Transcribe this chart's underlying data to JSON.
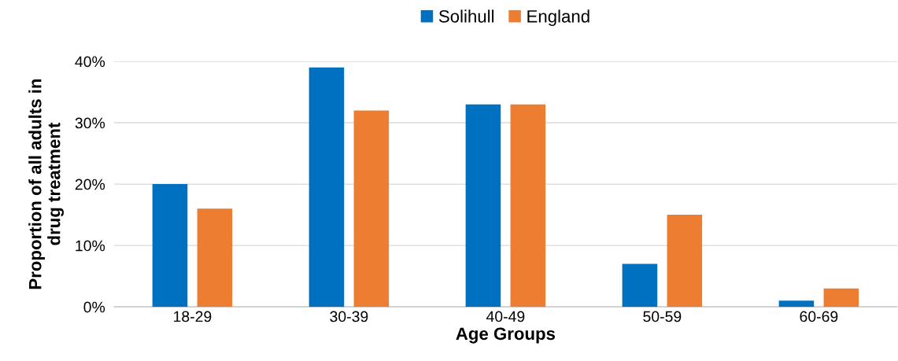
{
  "chart_data": {
    "type": "bar",
    "xlabel": "Age Groups",
    "ylabel": "Proportion of all adults in\ndrug treatment",
    "categories": [
      "18-29",
      "30-39",
      "40-49",
      "50-59",
      "60-69"
    ],
    "series": [
      {
        "name": "Solihull",
        "color": "#0070c0",
        "values": [
          20,
          39,
          33,
          7,
          1
        ]
      },
      {
        "name": "England",
        "color": "#ed7d31",
        "values": [
          16,
          32,
          33,
          15,
          3
        ]
      }
    ],
    "ylim": [
      0,
      40
    ],
    "yticks": [
      {
        "value": 0,
        "label": "0%"
      },
      {
        "value": 10,
        "label": "10%"
      },
      {
        "value": 20,
        "label": "20%"
      },
      {
        "value": 30,
        "label": "30%"
      },
      {
        "value": 40,
        "label": "40%"
      }
    ],
    "grid": "y",
    "legend": "top"
  }
}
